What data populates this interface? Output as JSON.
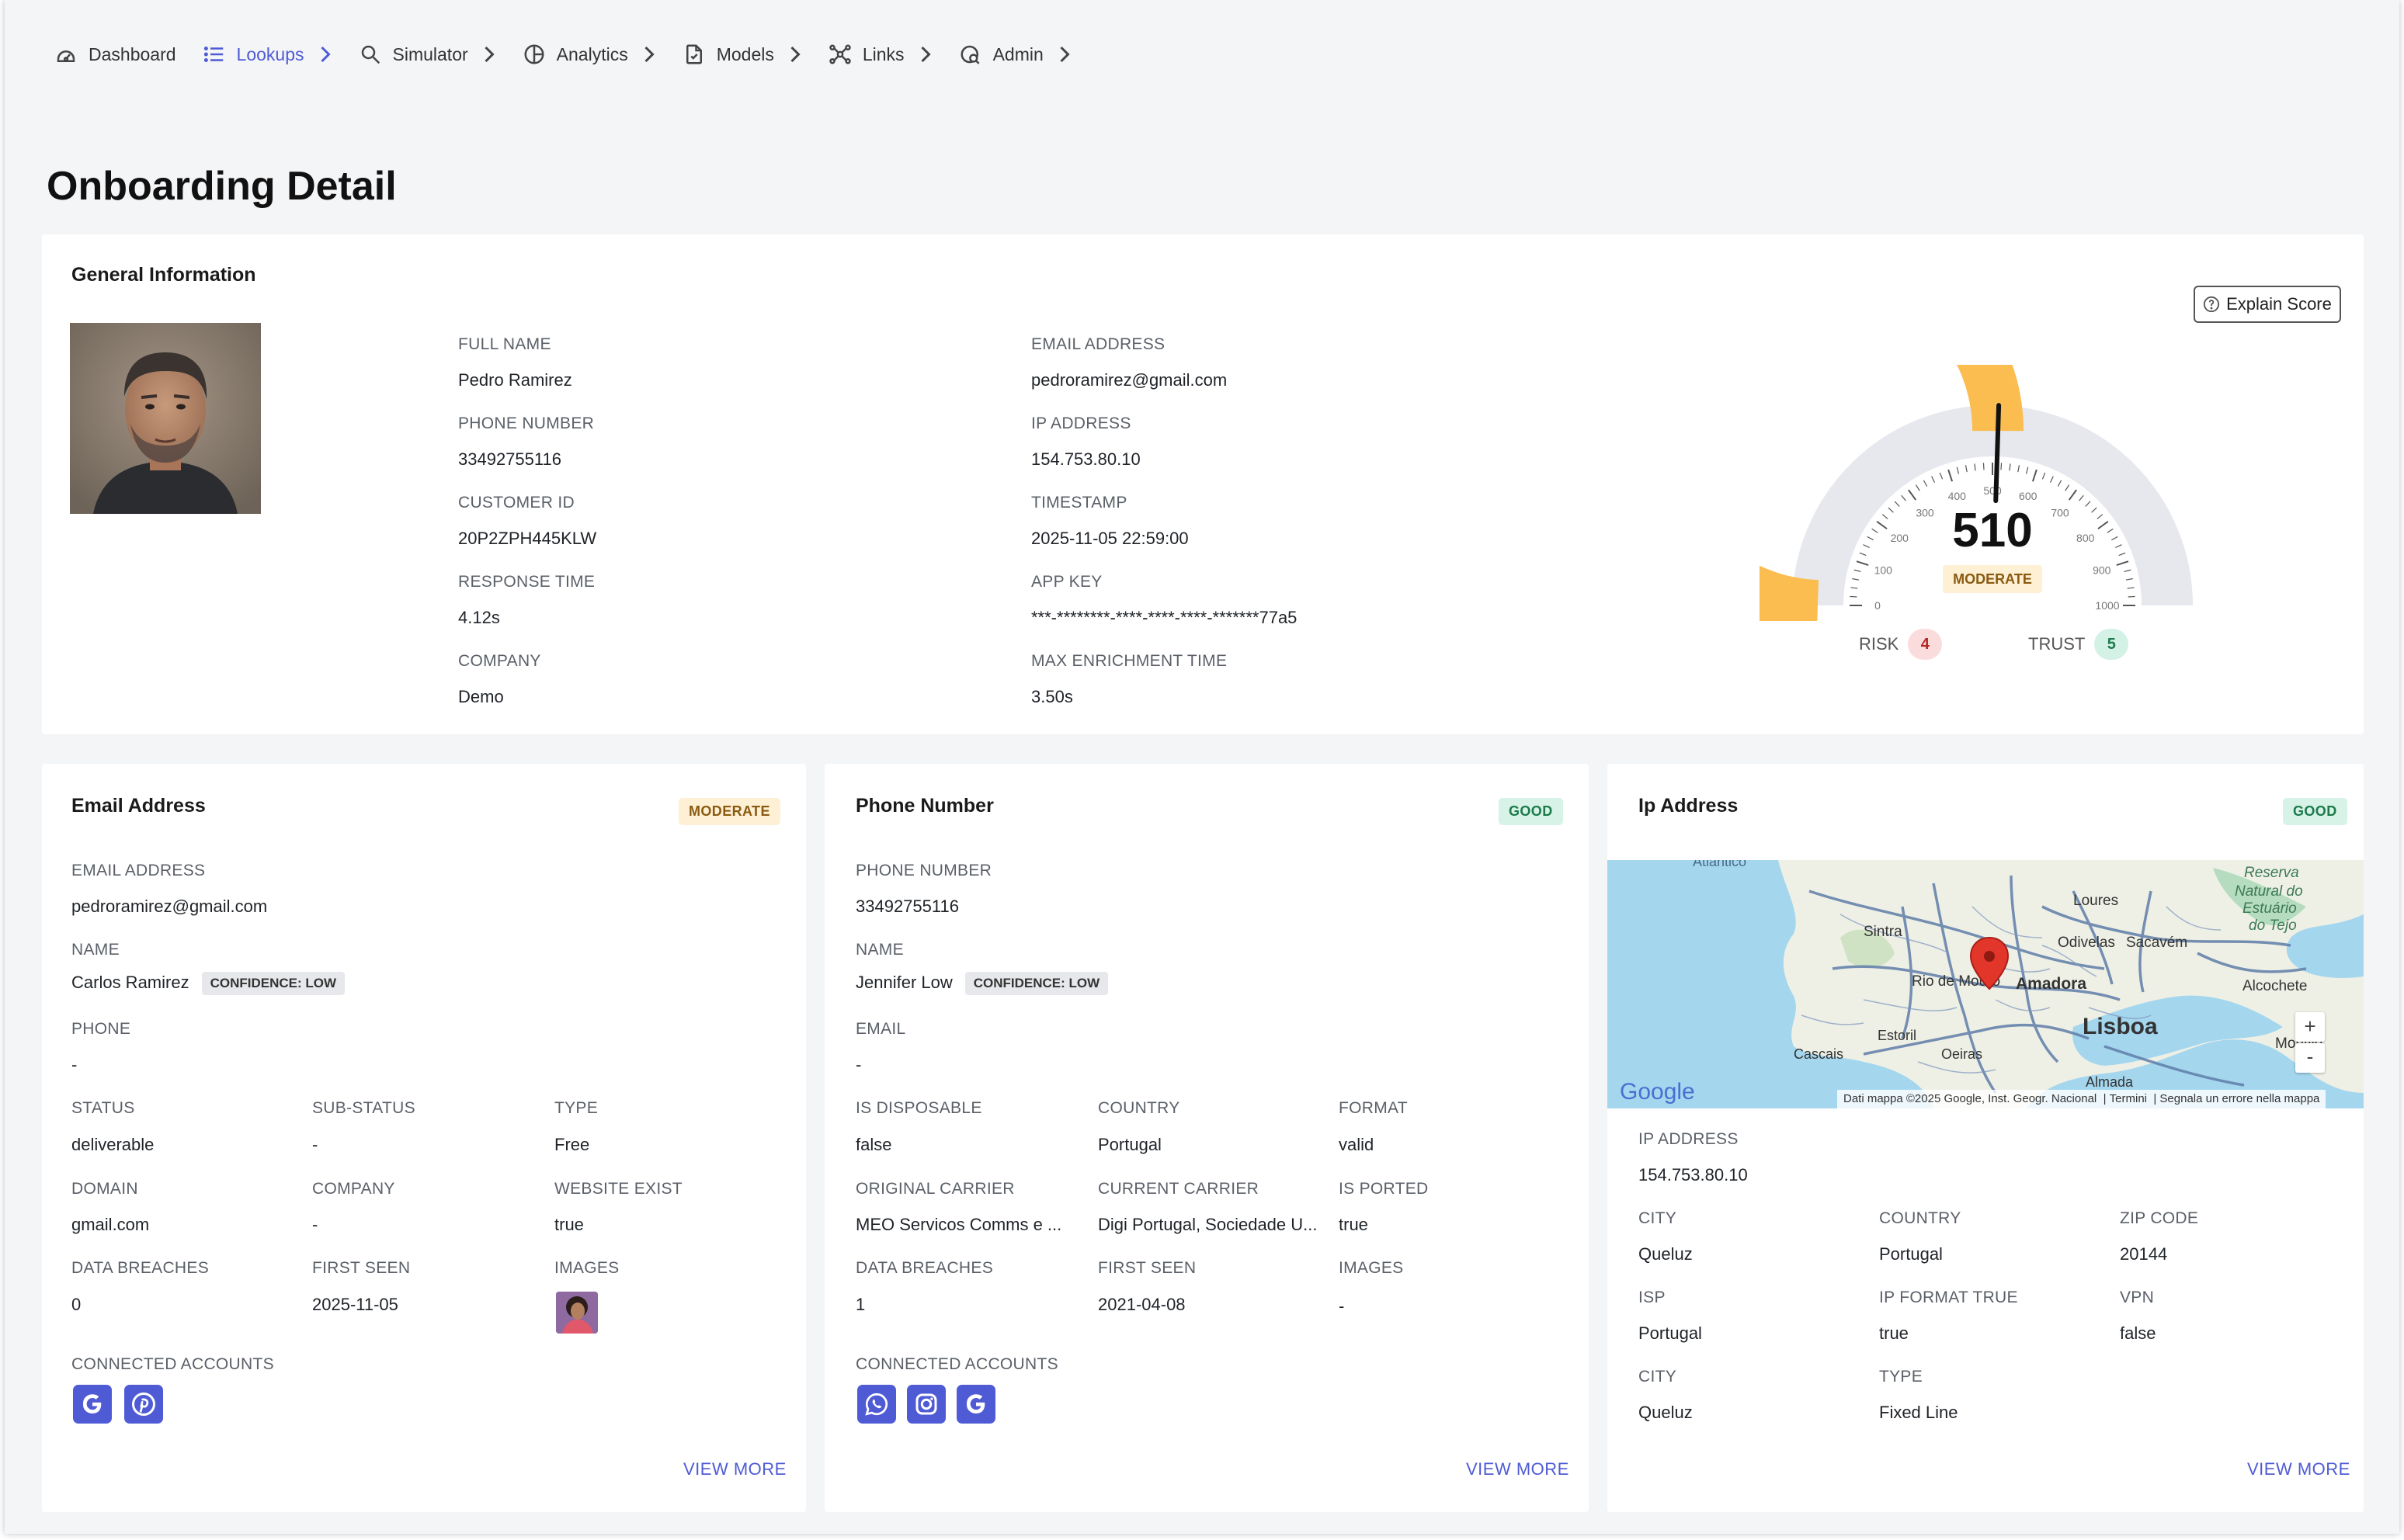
{
  "nav": {
    "items": [
      {
        "label": "Dashboard",
        "icon": "dashboard-icon"
      },
      {
        "label": "Lookups",
        "icon": "list-icon",
        "active": true
      },
      {
        "label": "Simulator",
        "icon": "search-icon"
      },
      {
        "label": "Analytics",
        "icon": "analytics-icon"
      },
      {
        "label": "Models",
        "icon": "models-icon"
      },
      {
        "label": "Links",
        "icon": "links-icon"
      },
      {
        "label": "Admin",
        "icon": "admin-icon"
      }
    ]
  },
  "page": {
    "title": "Onboarding Detail"
  },
  "general": {
    "title": "General Information",
    "explain_label": "Explain Score",
    "col1": [
      {
        "label": "FULL NAME",
        "value": "Pedro Ramirez"
      },
      {
        "label": "PHONE NUMBER",
        "value": "33492755116"
      },
      {
        "label": "CUSTOMER ID",
        "value": "20P2ZPH445KLW"
      },
      {
        "label": "RESPONSE TIME",
        "value": "4.12s"
      },
      {
        "label": "COMPANY",
        "value": "Demo"
      }
    ],
    "col2": [
      {
        "label": "EMAIL ADDRESS",
        "value": "pedroramirez@gmail.com"
      },
      {
        "label": "IP ADDRESS",
        "value": "154.753.80.10"
      },
      {
        "label": "TIMESTAMP",
        "value": "2025-11-05 22:59:00"
      },
      {
        "label": "APP KEY",
        "value": "***-********-****-****-****-*******77a5"
      },
      {
        "label": "MAX ENRICHMENT TIME",
        "value": "3.50s"
      }
    ],
    "gauge": {
      "score": "510",
      "score_value": 510,
      "min": 0,
      "max": 1000,
      "status": "MODERATE",
      "fill_color": "#fbbd4f",
      "track_color": "#e6e8ee",
      "ticks": [
        "0",
        "100",
        "200",
        "300",
        "400",
        "500",
        "600",
        "700",
        "800",
        "900",
        "1000"
      ],
      "risk_label": "RISK",
      "risk_count": "4",
      "trust_label": "TRUST",
      "trust_count": "5"
    }
  },
  "email_card": {
    "title": "Email Address",
    "badge": "MODERATE",
    "email_label": "EMAIL ADDRESS",
    "email_value": "pedroramirez@gmail.com",
    "name_label": "NAME",
    "name_value": "Carlos Ramirez",
    "confidence": "CONFIDENCE: LOW",
    "phone_label": "PHONE",
    "phone_value": "-",
    "grid": [
      {
        "label": "STATUS",
        "value": "deliverable"
      },
      {
        "label": "SUB-STATUS",
        "value": "-"
      },
      {
        "label": "TYPE",
        "value": "Free"
      },
      {
        "label": "DOMAIN",
        "value": "gmail.com"
      },
      {
        "label": "COMPANY",
        "value": "-"
      },
      {
        "label": "WEBSITE EXIST",
        "value": "true"
      },
      {
        "label": "DATA BREACHES",
        "value": "0"
      },
      {
        "label": "FIRST SEEN",
        "value": "2025-11-05"
      },
      {
        "label": "IMAGES",
        "value": ""
      }
    ],
    "accounts_label": "CONNECTED ACCOUNTS",
    "accounts": [
      "google-icon",
      "pinterest-icon"
    ],
    "view_more": "VIEW MORE"
  },
  "phone_card": {
    "title": "Phone Number",
    "badge": "GOOD",
    "phone_label": "PHONE NUMBER",
    "phone_value": "33492755116",
    "name_label": "NAME",
    "name_value": "Jennifer Low",
    "confidence": "CONFIDENCE: LOW",
    "email_label": "EMAIL",
    "email_value": "-",
    "grid": [
      {
        "label": "IS DISPOSABLE",
        "value": "false"
      },
      {
        "label": "COUNTRY",
        "value": "Portugal"
      },
      {
        "label": "FORMAT",
        "value": "valid"
      },
      {
        "label": "ORIGINAL CARRIER",
        "value": "MEO Servicos Comms e ..."
      },
      {
        "label": "CURRENT CARRIER",
        "value": "Digi Portugal, Sociedade U..."
      },
      {
        "label": "IS PORTED",
        "value": "true"
      },
      {
        "label": "DATA BREACHES",
        "value": "1"
      },
      {
        "label": "FIRST SEEN",
        "value": "2021-04-08"
      },
      {
        "label": "IMAGES",
        "value": "-"
      }
    ],
    "accounts_label": "CONNECTED ACCOUNTS",
    "accounts": [
      "whatsapp-icon",
      "instagram-icon",
      "google-icon"
    ],
    "view_more": "VIEW MORE"
  },
  "ip_card": {
    "title": "Ip Address",
    "badge": "GOOD",
    "map": {
      "labels": {
        "sintra": "Sintra",
        "loures": "Loures",
        "odivelas": "Odivelas",
        "sacavem": "Sacavém",
        "rio": "Rio de Mouro",
        "amadora": "Amadora",
        "lisboa": "Lisboa",
        "estoril": "Estoril",
        "cascais": "Cascais",
        "oeiras": "Oeiras",
        "almada": "Almada",
        "alcochete": "Alcochete",
        "montijo": "Montijo",
        "reserva": "Reserva",
        "natural": "Natural do",
        "estuario": "Estuário",
        "tejo": "do Tejo",
        "atlantico": "Atlântico"
      },
      "logo": "Google",
      "attribution": "Dati mappa ©2025 Google, Inst. Geogr. Nacional",
      "terms": "Termini",
      "report": "Segnala un errore nella mappa",
      "zoom_in": "+",
      "zoom_out": "-"
    },
    "ip_label": "IP ADDRESS",
    "ip_value": "154.753.80.10",
    "grid": [
      {
        "label": "CITY",
        "value": "Queluz"
      },
      {
        "label": "COUNTRY",
        "value": "Portugal"
      },
      {
        "label": "ZIP CODE",
        "value": "20144"
      },
      {
        "label": "ISP",
        "value": "Portugal"
      },
      {
        "label": "IP FORMAT TRUE",
        "value": "true"
      },
      {
        "label": "VPN",
        "value": "false"
      },
      {
        "label": "CITY",
        "value": "Queluz"
      },
      {
        "label": "TYPE",
        "value": "Fixed Line"
      }
    ],
    "view_more": "VIEW MORE"
  }
}
